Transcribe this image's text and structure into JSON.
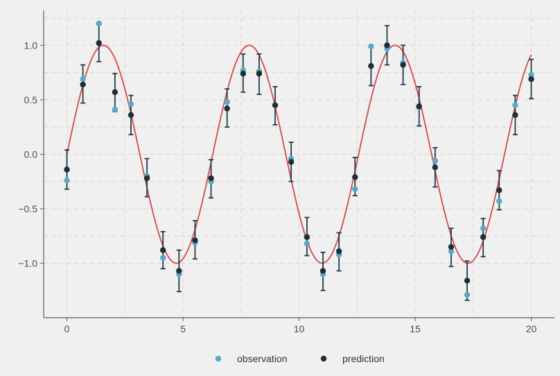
{
  "chart_data": {
    "type": "scatter",
    "title": "",
    "xlabel": "",
    "ylabel": "",
    "xlim": [
      -1,
      21
    ],
    "ylim": [
      -1.5,
      1.32
    ],
    "x_ticks": [
      0,
      5,
      10,
      15,
      20
    ],
    "x_tick_labels": [
      "0",
      "5",
      "10",
      "15",
      "20"
    ],
    "y_ticks": [
      -1.0,
      -0.5,
      0.0,
      0.5,
      1.0
    ],
    "y_tick_labels": [
      "−1.0",
      "−0.5",
      "0.0",
      "0.5",
      "1.0"
    ],
    "grid": true,
    "legend_position": "bottom",
    "legend": [
      {
        "label": "observation",
        "color": "#5aa9c4"
      },
      {
        "label": "prediction",
        "color": "#1f2d38"
      }
    ],
    "true_curve": {
      "function": "sin(x)",
      "color": "#d7474a",
      "x_range": [
        0,
        20
      ]
    },
    "series": [
      {
        "name": "observation",
        "color": "#5aa9c4",
        "x": [
          0.0,
          0.69,
          1.38,
          2.07,
          2.76,
          3.45,
          4.14,
          4.83,
          5.52,
          6.21,
          6.9,
          7.59,
          8.28,
          8.97,
          9.66,
          10.34,
          11.03,
          11.72,
          12.41,
          13.1,
          13.79,
          14.48,
          15.17,
          15.86,
          16.55,
          17.24,
          17.93,
          18.62,
          19.31,
          20.0
        ],
        "values": [
          -0.24,
          0.69,
          1.2,
          0.41,
          0.46,
          -0.2,
          -0.95,
          -1.1,
          -0.81,
          -0.25,
          0.48,
          0.77,
          0.76,
          0.45,
          -0.04,
          -0.82,
          -1.1,
          -0.92,
          -0.32,
          0.99,
          0.97,
          0.84,
          0.43,
          -0.06,
          -0.89,
          -1.29,
          -0.68,
          -0.43,
          0.45,
          0.73
        ]
      },
      {
        "name": "prediction",
        "color": "#1f2d38",
        "x": [
          0.0,
          0.69,
          1.38,
          2.07,
          2.76,
          3.45,
          4.14,
          4.83,
          5.52,
          6.21,
          6.9,
          7.59,
          8.28,
          8.97,
          9.66,
          10.34,
          11.03,
          11.72,
          12.41,
          13.1,
          13.79,
          14.48,
          15.17,
          15.86,
          16.55,
          17.24,
          17.93,
          18.62,
          19.31,
          20.0
        ],
        "values": [
          -0.14,
          0.64,
          1.02,
          0.57,
          0.36,
          -0.22,
          -0.88,
          -1.07,
          -0.79,
          -0.22,
          0.42,
          0.74,
          0.74,
          0.45,
          -0.07,
          -0.76,
          -1.07,
          -0.89,
          -0.21,
          0.81,
          1.0,
          0.82,
          0.44,
          -0.12,
          -0.85,
          -1.16,
          -0.76,
          -0.33,
          0.36,
          0.69
        ],
        "error_low": [
          -0.32,
          0.47,
          0.85,
          0.39,
          0.18,
          -0.39,
          -1.05,
          -1.26,
          -0.96,
          -0.4,
          0.25,
          0.57,
          0.55,
          0.27,
          -0.25,
          -0.93,
          -1.25,
          -1.07,
          -0.38,
          0.63,
          0.82,
          0.64,
          0.26,
          -0.3,
          -1.03,
          -1.34,
          -0.94,
          -0.51,
          0.18,
          0.51
        ],
        "error_high": [
          0.04,
          0.82,
          1.2,
          0.74,
          0.54,
          -0.04,
          -0.71,
          -0.88,
          -0.61,
          -0.05,
          0.6,
          0.92,
          0.92,
          0.62,
          0.11,
          -0.58,
          -0.9,
          -0.72,
          -0.03,
          0.99,
          1.18,
          1.0,
          0.62,
          0.06,
          -0.68,
          -0.98,
          -0.59,
          -0.15,
          0.54,
          0.87
        ]
      }
    ]
  }
}
